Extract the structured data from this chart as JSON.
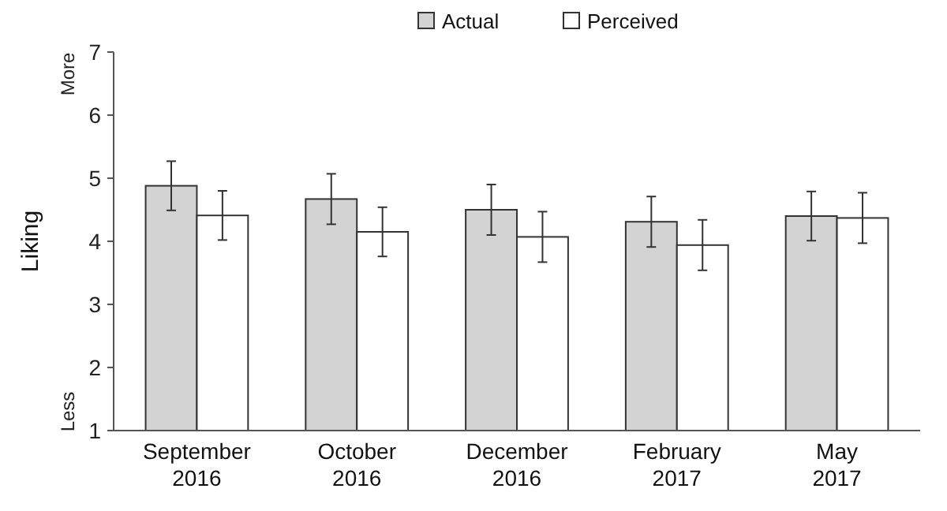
{
  "chart_data": {
    "type": "bar",
    "ylabel": "Liking",
    "categories": [
      "September\n2016",
      "October\n2016",
      "December\n2016",
      "February\n2017",
      "May\n2017"
    ],
    "series": [
      {
        "name": "Actual",
        "color": "#d3d3d3",
        "values": [
          4.88,
          4.67,
          4.5,
          4.31,
          4.4
        ],
        "errors": [
          0.39,
          0.4,
          0.4,
          0.4,
          0.39
        ]
      },
      {
        "name": "Perceived",
        "color": "#ffffff",
        "values": [
          4.41,
          4.15,
          4.07,
          3.94,
          4.37
        ],
        "errors": [
          0.39,
          0.39,
          0.4,
          0.4,
          0.4
        ]
      }
    ],
    "ylim": [
      1,
      7
    ],
    "yticks": [
      1,
      2,
      3,
      4,
      5,
      6,
      7
    ],
    "grid": false,
    "legend": "top",
    "annotations": [
      "More",
      "Less"
    ]
  }
}
